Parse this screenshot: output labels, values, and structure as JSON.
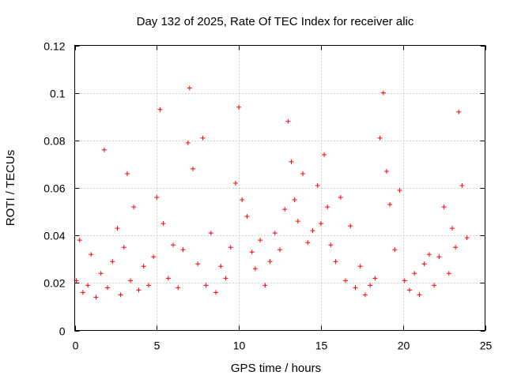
{
  "chart_data": {
    "type": "scatter",
    "title": "Day 132 of 2025, Rate Of TEC Index for receiver alic",
    "xlabel": "GPS time / hours",
    "ylabel": "ROTI / TECUs",
    "xlim": [
      0,
      25
    ],
    "ylim": [
      0,
      0.12
    ],
    "x_ticks": [
      0,
      5,
      10,
      15,
      20,
      25
    ],
    "x_tick_labels": [
      "0",
      "5",
      "10",
      "15",
      "20",
      "25"
    ],
    "y_ticks": [
      0,
      0.02,
      0.04,
      0.06,
      0.08,
      0.1,
      0.12
    ],
    "y_tick_labels": [
      "0",
      "0.02",
      "0.04",
      "0.06",
      "0.08",
      "0.1",
      "0.12"
    ],
    "grid": true,
    "marker": "+",
    "color": "#ff0000",
    "series": [
      {
        "name": "ROTI",
        "x": [
          0.1,
          0.3,
          0.5,
          0.8,
          1.0,
          1.3,
          1.6,
          1.8,
          2.0,
          2.3,
          2.6,
          2.8,
          3.0,
          3.2,
          3.4,
          3.6,
          3.9,
          4.2,
          4.5,
          4.8,
          5.0,
          5.2,
          5.4,
          5.7,
          6.0,
          6.3,
          6.6,
          6.9,
          7.0,
          7.2,
          7.5,
          7.8,
          8.0,
          8.3,
          8.6,
          8.9,
          9.2,
          9.5,
          9.8,
          10.0,
          10.2,
          10.5,
          10.8,
          11.0,
          11.3,
          11.6,
          11.9,
          12.2,
          12.5,
          12.8,
          13.0,
          13.2,
          13.4,
          13.6,
          13.9,
          14.2,
          14.5,
          14.8,
          15.0,
          15.2,
          15.4,
          15.6,
          15.9,
          16.2,
          16.5,
          16.8,
          17.1,
          17.4,
          17.7,
          18.0,
          18.3,
          18.6,
          18.8,
          19.0,
          19.2,
          19.5,
          19.8,
          20.1,
          20.4,
          20.7,
          21.0,
          21.3,
          21.6,
          21.9,
          22.2,
          22.5,
          22.8,
          23.0,
          23.2,
          23.4,
          23.6,
          23.9
        ],
        "values": [
          0.021,
          0.038,
          0.016,
          0.019,
          0.032,
          0.014,
          0.024,
          0.076,
          0.018,
          0.029,
          0.043,
          0.015,
          0.035,
          0.066,
          0.021,
          0.052,
          0.017,
          0.027,
          0.019,
          0.031,
          0.056,
          0.093,
          0.045,
          0.022,
          0.036,
          0.018,
          0.034,
          0.079,
          0.102,
          0.068,
          0.028,
          0.081,
          0.019,
          0.041,
          0.016,
          0.027,
          0.022,
          0.035,
          0.062,
          0.094,
          0.055,
          0.048,
          0.033,
          0.026,
          0.038,
          0.019,
          0.029,
          0.041,
          0.034,
          0.051,
          0.088,
          0.071,
          0.055,
          0.046,
          0.066,
          0.037,
          0.042,
          0.061,
          0.045,
          0.074,
          0.052,
          0.036,
          0.029,
          0.056,
          0.021,
          0.044,
          0.018,
          0.027,
          0.015,
          0.019,
          0.022,
          0.081,
          0.1,
          0.067,
          0.053,
          0.034,
          0.059,
          0.021,
          0.017,
          0.024,
          0.015,
          0.028,
          0.032,
          0.019,
          0.031,
          0.052,
          0.024,
          0.043,
          0.035,
          0.092,
          0.061,
          0.039
        ]
      }
    ]
  }
}
